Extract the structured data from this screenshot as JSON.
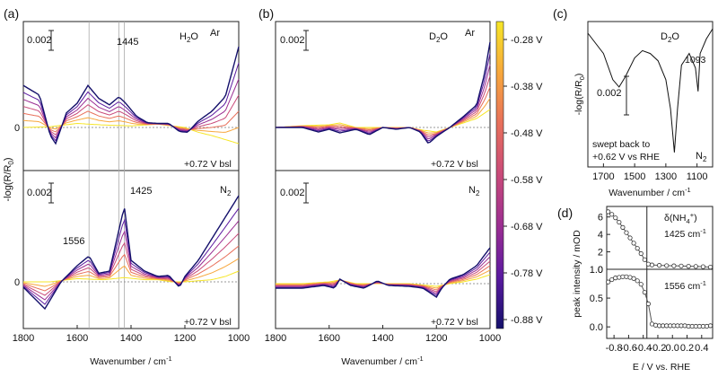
{
  "chart_data": {
    "type": "line",
    "description_panels": [
      "a",
      "b",
      "c",
      "d"
    ],
    "panel_labels": {
      "a": "(a)",
      "b": "(b)",
      "c": "(c)",
      "d": "(d)"
    },
    "scale_bar": "0.002",
    "zero_label": "0",
    "bsl_note": "+0.72 V bsl",
    "xlabel": "Wavenumber / cm",
    "xlabel_sup": "-1",
    "ylabel_ab": "-log(R/R",
    "ylabel_ab_sub": "0",
    "ylabel_ab_close": ")",
    "x_ticks_ab": [
      1800,
      1600,
      1400,
      1200,
      1000
    ],
    "xlim_ab": [
      1800,
      1000
    ],
    "potentials": [
      -0.28,
      -0.38,
      -0.48,
      -0.58,
      -0.68,
      -0.78,
      -0.88
    ],
    "colorbar": {
      "labels": [
        "-0.28 V",
        "-0.38 V",
        "-0.48 V",
        "-0.58 V",
        "-0.68 V",
        "-0.78 V",
        "-0.88 V"
      ],
      "colors": [
        "#f6e627",
        "#f7a63c",
        "#e8705b",
        "#c94a7a",
        "#9a2d92",
        "#5b1aa0",
        "#14106b"
      ]
    },
    "solvent_h2o": "H",
    "solvent_h2o_sub": "2",
    "solvent_h2o_end": "O",
    "solvent_d2o": "D",
    "solvent_d2o_sub": "2",
    "solvent_d2o_end": "O",
    "gas_ar": "Ar",
    "gas_n2": "N",
    "gas_n2_sub": "2",
    "annotations_a": {
      "top_peak": "1445",
      "bottom_peak_1": "1556",
      "bottom_peak_2": "1425"
    },
    "panel_a_markers_cm": [
      1556,
      1445,
      1425
    ],
    "panel_a_top": {
      "series": [
        {
          "potential": -0.88,
          "points": [
            [
              1800,
              0.52
            ],
            [
              1740,
              0.4
            ],
            [
              1700,
              -0.1
            ],
            [
              1680,
              -0.2
            ],
            [
              1640,
              0.18
            ],
            [
              1600,
              0.3
            ],
            [
              1560,
              0.52
            ],
            [
              1520,
              0.36
            ],
            [
              1480,
              0.28
            ],
            [
              1445,
              0.38
            ],
            [
              1420,
              0.3
            ],
            [
              1380,
              0.14
            ],
            [
              1340,
              0.06
            ],
            [
              1300,
              0.05
            ],
            [
              1260,
              0.05
            ],
            [
              1220,
              -0.05
            ],
            [
              1190,
              -0.06
            ],
            [
              1150,
              0.08
            ],
            [
              1100,
              0.2
            ],
            [
              1050,
              0.38
            ],
            [
              1020,
              0.75
            ],
            [
              1000,
              1.0
            ]
          ]
        },
        {
          "potential": -0.28,
          "points": [
            [
              1800,
              0.0
            ],
            [
              1700,
              0.01
            ],
            [
              1600,
              0.05
            ],
            [
              1500,
              0.03
            ],
            [
              1400,
              0.02
            ],
            [
              1300,
              0.04
            ],
            [
              1200,
              0.0
            ],
            [
              1150,
              -0.06
            ],
            [
              1100,
              -0.1
            ],
            [
              1050,
              -0.15
            ],
            [
              1000,
              -0.2
            ]
          ]
        }
      ]
    },
    "panel_a_bottom": {
      "series": [
        {
          "potential": -0.88,
          "points": [
            [
              1800,
              -0.05
            ],
            [
              1720,
              -0.25
            ],
            [
              1660,
              0.0
            ],
            [
              1600,
              0.15
            ],
            [
              1556,
              0.24
            ],
            [
              1520,
              0.08
            ],
            [
              1480,
              0.1
            ],
            [
              1425,
              0.7
            ],
            [
              1400,
              0.2
            ],
            [
              1350,
              0.1
            ],
            [
              1300,
              0.05
            ],
            [
              1260,
              0.06
            ],
            [
              1220,
              -0.05
            ],
            [
              1200,
              0.05
            ],
            [
              1150,
              0.2
            ],
            [
              1100,
              0.4
            ],
            [
              1050,
              0.6
            ],
            [
              1000,
              0.8
            ]
          ]
        },
        {
          "potential": -0.28,
          "points": [
            [
              1800,
              0.0
            ],
            [
              1700,
              0.0
            ],
            [
              1600,
              0.03
            ],
            [
              1500,
              0.02
            ],
            [
              1425,
              0.04
            ],
            [
              1350,
              0.02
            ],
            [
              1300,
              0.02
            ],
            [
              1250,
              0.0
            ],
            [
              1200,
              0.0
            ],
            [
              1100,
              0.02
            ],
            [
              1050,
              0.05
            ],
            [
              1000,
              0.1
            ]
          ]
        }
      ]
    },
    "panel_b_top": {
      "series": [
        {
          "potential": -0.88,
          "points": [
            [
              1800,
              0.0
            ],
            [
              1700,
              0.0
            ],
            [
              1640,
              -0.05
            ],
            [
              1600,
              -0.02
            ],
            [
              1560,
              -0.06
            ],
            [
              1500,
              -0.02
            ],
            [
              1450,
              -0.08
            ],
            [
              1400,
              0.0
            ],
            [
              1350,
              -0.02
            ],
            [
              1300,
              0.0
            ],
            [
              1260,
              -0.05
            ],
            [
              1230,
              -0.18
            ],
            [
              1200,
              -0.1
            ],
            [
              1150,
              0.0
            ],
            [
              1100,
              0.12
            ],
            [
              1050,
              0.25
            ],
            [
              1020,
              0.6
            ],
            [
              1000,
              0.95
            ]
          ]
        },
        {
          "potential": -0.28,
          "points": [
            [
              1800,
              0.0
            ],
            [
              1700,
              0.02
            ],
            [
              1600,
              0.03
            ],
            [
              1560,
              0.05
            ],
            [
              1500,
              0.0
            ],
            [
              1400,
              0.0
            ],
            [
              1300,
              0.0
            ],
            [
              1250,
              -0.03
            ],
            [
              1200,
              -0.05
            ],
            [
              1150,
              0.0
            ],
            [
              1100,
              0.05
            ],
            [
              1050,
              0.1
            ],
            [
              1000,
              0.2
            ]
          ]
        }
      ]
    },
    "panel_b_bottom": {
      "series": [
        {
          "potential": -0.88,
          "points": [
            [
              1800,
              -0.05
            ],
            [
              1700,
              -0.05
            ],
            [
              1620,
              -0.02
            ],
            [
              1580,
              -0.05
            ],
            [
              1560,
              0.05
            ],
            [
              1520,
              -0.02
            ],
            [
              1470,
              -0.05
            ],
            [
              1420,
              0.03
            ],
            [
              1380,
              -0.02
            ],
            [
              1300,
              -0.03
            ],
            [
              1250,
              -0.05
            ],
            [
              1200,
              -0.15
            ],
            [
              1180,
              -0.05
            ],
            [
              1150,
              0.05
            ],
            [
              1100,
              0.1
            ],
            [
              1050,
              0.2
            ],
            [
              1000,
              0.4
            ]
          ]
        },
        {
          "potential": -0.28,
          "points": [
            [
              1800,
              0.0
            ],
            [
              1700,
              0.0
            ],
            [
              1600,
              0.02
            ],
            [
              1560,
              0.04
            ],
            [
              1500,
              0.0
            ],
            [
              1400,
              0.0
            ],
            [
              1300,
              0.0
            ],
            [
              1200,
              -0.03
            ],
            [
              1150,
              0.0
            ],
            [
              1100,
              0.02
            ],
            [
              1050,
              0.05
            ],
            [
              1000,
              0.1
            ]
          ]
        }
      ]
    },
    "panel_c": {
      "x_ticks": [
        1700,
        1500,
        1300,
        1100
      ],
      "xlim": [
        1800,
        1000
      ],
      "solvent": "D2O",
      "gas": "N2",
      "peak_label": "1093",
      "note_line1": "swept back to",
      "note_line2": "+0.62 V vs RHE",
      "points": [
        [
          1800,
          0.92
        ],
        [
          1700,
          0.78
        ],
        [
          1640,
          0.6
        ],
        [
          1600,
          0.55
        ],
        [
          1560,
          0.62
        ],
        [
          1500,
          0.75
        ],
        [
          1450,
          0.8
        ],
        [
          1400,
          0.78
        ],
        [
          1350,
          0.73
        ],
        [
          1300,
          0.6
        ],
        [
          1270,
          0.4
        ],
        [
          1245,
          0.1
        ],
        [
          1225,
          0.4
        ],
        [
          1200,
          0.7
        ],
        [
          1150,
          0.78
        ],
        [
          1110,
          0.68
        ],
        [
          1093,
          0.52
        ],
        [
          1080,
          0.78
        ],
        [
          1040,
          0.88
        ],
        [
          1000,
          0.95
        ]
      ]
    },
    "panel_d": {
      "xlabel": "E / V vs. RHE",
      "ylabel": "peak intensity / mOD",
      "x_ticks": [
        -0.8,
        -0.6,
        -0.4,
        -0.2,
        0.0,
        0.2,
        0.4
      ],
      "xlim": [
        -0.9,
        0.55
      ],
      "x_vline": -0.35,
      "top_label": "δ(NH",
      "top_label_sub": "4",
      "top_label_sup": "+",
      "top_label_close": ")",
      "top_sublabel": "1425 cm",
      "top_sublabel_sup": "-1",
      "bottom_label": "1556 cm",
      "bottom_label_sup": "-1",
      "top": {
        "ylim": [
          0,
          7
        ],
        "y_ticks": [
          0,
          2,
          4,
          6
        ],
        "x": [
          -0.88,
          -0.83,
          -0.78,
          -0.73,
          -0.68,
          -0.63,
          -0.58,
          -0.53,
          -0.48,
          -0.43,
          -0.38,
          -0.33,
          -0.28,
          -0.18,
          -0.08,
          0.02,
          0.12,
          0.22,
          0.32,
          0.42,
          0.52
        ],
        "y": [
          6.6,
          6.3,
          5.9,
          5.4,
          4.8,
          4.2,
          3.6,
          3.0,
          2.4,
          1.8,
          1.1,
          0.6,
          0.5,
          0.45,
          0.42,
          0.4,
          0.38,
          0.35,
          0.33,
          0.3,
          0.25
        ]
      },
      "bottom": {
        "ylim": [
          -0.2,
          1.0
        ],
        "y_ticks": [
          0.0,
          0.5,
          1.0
        ],
        "x": [
          -0.88,
          -0.83,
          -0.78,
          -0.73,
          -0.68,
          -0.63,
          -0.58,
          -0.53,
          -0.48,
          -0.43,
          -0.38,
          -0.33,
          -0.28,
          -0.23,
          -0.18,
          -0.13,
          -0.08,
          -0.03,
          0.02,
          0.07,
          0.12,
          0.17,
          0.22,
          0.27,
          0.32,
          0.37,
          0.42,
          0.47,
          0.52
        ],
        "y": [
          0.78,
          0.82,
          0.85,
          0.86,
          0.87,
          0.87,
          0.86,
          0.84,
          0.8,
          0.74,
          0.6,
          0.4,
          0.05,
          0.03,
          0.02,
          0.02,
          0.02,
          0.02,
          0.02,
          0.02,
          0.02,
          0.02,
          0.01,
          0.01,
          0.01,
          0.01,
          0.01,
          0.01,
          0.02
        ]
      }
    }
  }
}
